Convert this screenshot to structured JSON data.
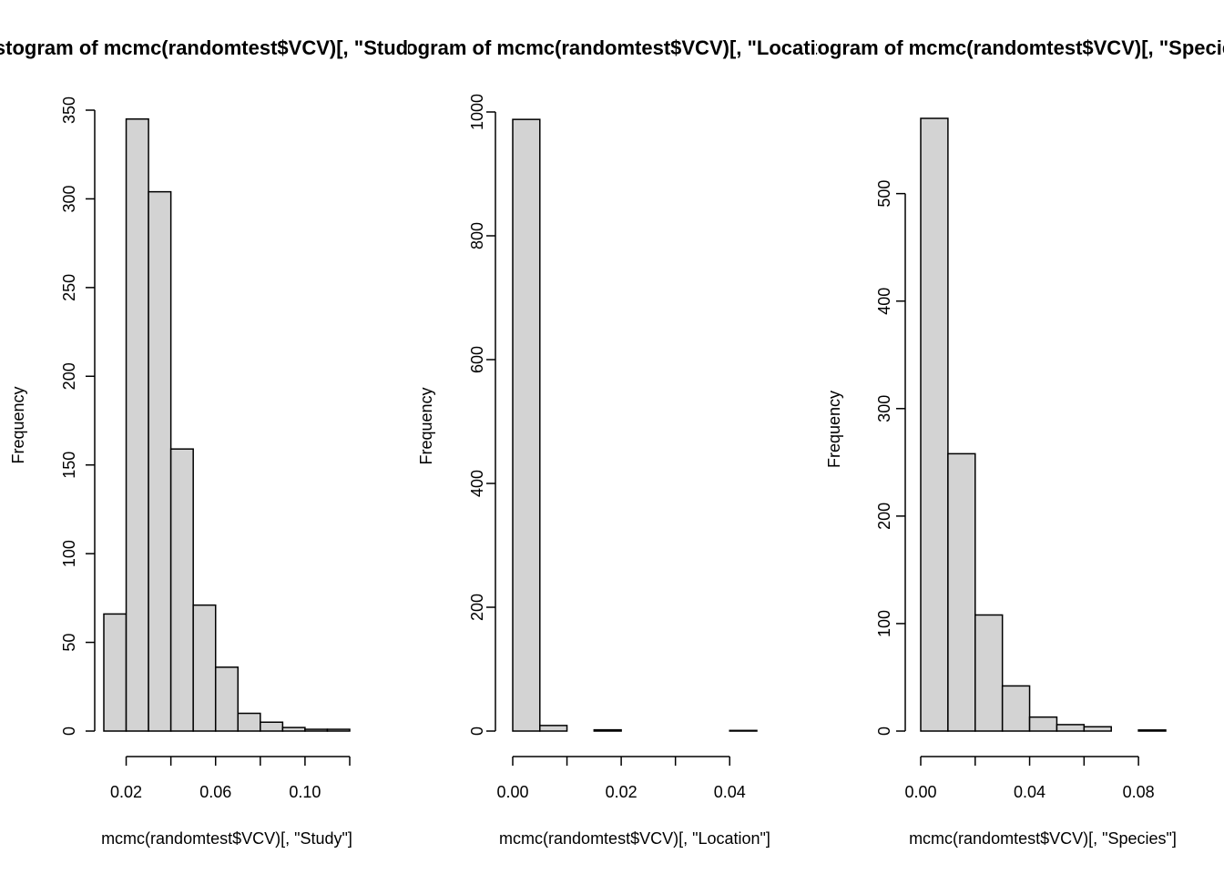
{
  "colors": {
    "bar_fill": "#d3d3d3",
    "bar_stroke": "#000000",
    "background": "#ffffff"
  },
  "chart_data": [
    {
      "type": "bar",
      "title": "Histogram of mcmc(randomtest$VCV)[, \"Study\"]",
      "xlabel": "mcmc(randomtest$VCV)[, \"Study\"]",
      "ylabel": "Frequency",
      "bin_edges": [
        0.01,
        0.02,
        0.03,
        0.04,
        0.05,
        0.06,
        0.07,
        0.08,
        0.09,
        0.1,
        0.11,
        0.12
      ],
      "values": [
        66,
        345,
        304,
        159,
        71,
        36,
        10,
        5,
        2,
        1,
        1
      ],
      "xlim": [
        0.01,
        0.12
      ],
      "ylim": [
        0,
        350
      ],
      "xticks": [
        0.02,
        0.04,
        0.06,
        0.08,
        0.1,
        0.12
      ],
      "xtick_labels": [
        "0.02",
        "",
        "0.06",
        "",
        "0.10",
        ""
      ],
      "yticks": [
        0,
        50,
        100,
        150,
        200,
        250,
        300,
        350
      ],
      "ytick_labels": [
        "0",
        "50",
        "100",
        "150",
        "200",
        "250",
        "300",
        "350"
      ],
      "grid": false
    },
    {
      "type": "bar",
      "title": "Histogram of mcmc(randomtest$VCV)[, \"Location\"]",
      "xlabel": "mcmc(randomtest$VCV)[, \"Location\"]",
      "ylabel": "Frequency",
      "bin_edges": [
        0.0,
        0.005,
        0.01,
        0.015,
        0.02,
        0.025,
        0.03,
        0.035,
        0.04,
        0.045
      ],
      "values": [
        988,
        9,
        0,
        2,
        0,
        0,
        0,
        0,
        1
      ],
      "xlim": [
        0.0,
        0.045
      ],
      "ylim": [
        0,
        1000
      ],
      "xticks": [
        0.0,
        0.01,
        0.02,
        0.03,
        0.04
      ],
      "xtick_labels": [
        "0.00",
        "",
        "0.02",
        "",
        "0.04"
      ],
      "yticks": [
        0,
        200,
        400,
        600,
        800,
        1000
      ],
      "ytick_labels": [
        "0",
        "200",
        "400",
        "600",
        "800",
        "1000"
      ],
      "grid": false
    },
    {
      "type": "bar",
      "title": "Histogram of mcmc(randomtest$VCV)[, \"Species\"]",
      "xlabel": "mcmc(randomtest$VCV)[, \"Species\"]",
      "ylabel": "Frequency",
      "bin_edges": [
        0.0,
        0.01,
        0.02,
        0.03,
        0.04,
        0.05,
        0.06,
        0.07,
        0.08,
        0.09
      ],
      "values": [
        570,
        258,
        108,
        42,
        13,
        6,
        4,
        0,
        1
      ],
      "xlim": [
        0.0,
        0.09
      ],
      "ylim": [
        0,
        570
      ],
      "xticks": [
        0.0,
        0.02,
        0.04,
        0.06,
        0.08
      ],
      "xtick_labels": [
        "0.00",
        "",
        "0.04",
        "",
        "0.08"
      ],
      "yticks": [
        0,
        100,
        200,
        300,
        400,
        500
      ],
      "ytick_labels": [
        "0",
        "100",
        "200",
        "300",
        "400",
        "500"
      ],
      "grid": false
    }
  ]
}
